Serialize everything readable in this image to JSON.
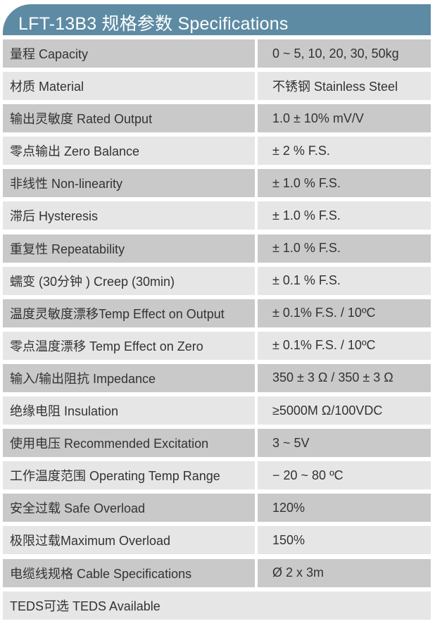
{
  "title": "LFT-13B3 规格参数 Specifications",
  "colors": {
    "header": "#5e8ba4",
    "row_dark": "#c9c9c9",
    "row_light": "#e6e6e6"
  },
  "specs": [
    {
      "label": "量程 Capacity",
      "value": "0 ~ 5, 10, 20, 30, 50kg"
    },
    {
      "label": "材质 Material",
      "value": "不锈钢 Stainless Steel"
    },
    {
      "label": "输出灵敏度 Rated Output",
      "value": "1.0  ± 10% mV/V"
    },
    {
      "label": "零点输出  Zero Balance",
      "value": "± 2 % F.S."
    },
    {
      "label": "非线性 Non-linearity",
      "value": "± 1.0 % F.S."
    },
    {
      "label": "滞后 Hysteresis",
      "value": "± 1.0 % F.S."
    },
    {
      "label": "重复性 Repeatability",
      "value": "± 1.0 % F.S."
    },
    {
      "label": "蠕变 (30分钟 ) Creep (30min)",
      "value": "± 0.1 % F.S."
    },
    {
      "label": "温度灵敏度漂移Temp Effect on Output",
      "value": "± 0.1% F.S. / 10ºC"
    },
    {
      "label": "零点温度漂移 Temp Effect on Zero",
      "value": "± 0.1% F.S. / 10ºC"
    },
    {
      "label": "输入/输出阻抗 Impedance",
      "value": "350 ± 3 Ω  / 350 ± 3 Ω"
    },
    {
      "label": "绝缘电阻  Insulation",
      "value": "≥5000M Ω/100VDC"
    },
    {
      "label": "使用电压 Recommended Excitation",
      "value": "3 ~ 5V"
    },
    {
      "label": "工作温度范围 Operating Temp  Range",
      "value": "− 20 ~ 80 ºC"
    },
    {
      "label": "安全过载 Safe Overload",
      "value": "120%"
    },
    {
      "label": "极限过载Maximum Overload",
      "value": "150%"
    },
    {
      "label": "电缆线规格 Cable Specifications",
      "value": "Ø 2 x 3m"
    }
  ],
  "footer_row": {
    "label": "TEDS可选 TEDS Available"
  }
}
